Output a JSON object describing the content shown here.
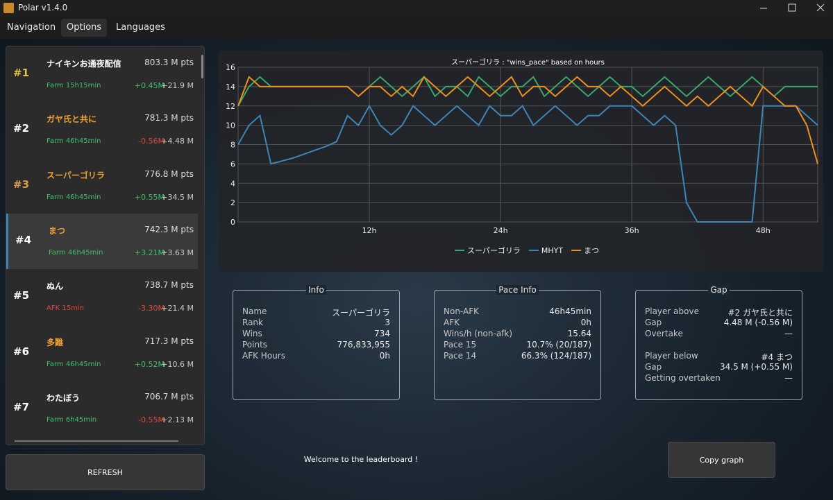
{
  "window_title": "Polar v1.4.0",
  "menu": [
    "Navigation",
    "Options",
    "Languages"
  ],
  "leaderboard": [
    {
      "rank": "#1",
      "rank_color": "#e3c04e",
      "name": "ナイキンお通夜配信",
      "name_color": "#ffffff",
      "points": "803.3 M pts",
      "status": "Farm 15h15min",
      "status_color": "#3fbf6a",
      "delta": "+0.45M",
      "delta_color": "#3fbf6a",
      "gap": "+21.9 M"
    },
    {
      "rank": "#2",
      "rank_color": "#ffffff",
      "name": "ガヤ氏と共に",
      "name_color": "#f0a032",
      "points": "781.3 M pts",
      "status": "Farm 46h45min",
      "status_color": "#3fbf6a",
      "delta": "-0.56M",
      "delta_color": "#e0473c",
      "gap": "+4.48 M"
    },
    {
      "rank": "#3",
      "rank_color": "#d99a4c",
      "name": "スーパーゴリラ",
      "name_color": "#f0a032",
      "points": "776.8 M pts",
      "status": "Farm 46h45min",
      "status_color": "#3fbf6a",
      "delta": "+0.55M",
      "delta_color": "#3fbf6a",
      "gap": "+34.5 M"
    },
    {
      "rank": "#4",
      "rank_color": "#ffffff",
      "name": "まつ",
      "name_color": "#f0a032",
      "points": "742.3 M pts",
      "status": "Farm 46h45min",
      "status_color": "#3fbf6a",
      "delta": "+3.21M",
      "delta_color": "#3fbf6a",
      "gap": "+3.63 M"
    },
    {
      "rank": "#5",
      "rank_color": "#ffffff",
      "name": "ぬん",
      "name_color": "#ffffff",
      "points": "738.7 M pts",
      "status": "AFK 15min",
      "status_color": "#e0473c",
      "delta": "-3.30M",
      "delta_color": "#e0473c",
      "gap": "+21.4 M"
    },
    {
      "rank": "#6",
      "rank_color": "#ffffff",
      "name": "多難",
      "name_color": "#f0a032",
      "points": "717.3 M pts",
      "status": "Farm 46h45min",
      "status_color": "#3fbf6a",
      "delta": "+0.52M",
      "delta_color": "#3fbf6a",
      "gap": "+10.6 M"
    },
    {
      "rank": "#7",
      "rank_color": "#ffffff",
      "name": "わたぼう",
      "name_color": "#ffffff",
      "points": "706.7 M pts",
      "status": "Farm 6h45min",
      "status_color": "#3fbf6a",
      "delta": "-0.55M",
      "delta_color": "#e0473c",
      "gap": "+2.13 M"
    }
  ],
  "refresh_button": "REFRESH",
  "chart_data": {
    "type": "line",
    "title": "スーパーゴリラ : \"wins_pace\" based on hours",
    "x": [
      0,
      1,
      2,
      3,
      4,
      5,
      6,
      7,
      8,
      9,
      10,
      11,
      12,
      13,
      14,
      15,
      16,
      17,
      18,
      19,
      20,
      21,
      22,
      23,
      24,
      25,
      26,
      27,
      28,
      29,
      30,
      31,
      32,
      33,
      34,
      35,
      36,
      37,
      38,
      39,
      40,
      41,
      42,
      43,
      44,
      45,
      46,
      47,
      48,
      49,
      50,
      51,
      52,
      53
    ],
    "xlim": [
      0,
      53
    ],
    "xticks": [
      {
        "value": 12,
        "label": "12h"
      },
      {
        "value": 24,
        "label": "24h"
      },
      {
        "value": 36,
        "label": "36h"
      },
      {
        "value": 48,
        "label": "48h"
      }
    ],
    "ylim": [
      0,
      16
    ],
    "yticks": [
      0,
      2,
      4,
      6,
      8,
      10,
      12,
      14,
      16
    ],
    "grid": true,
    "legend": "bottom",
    "series": [
      {
        "name": "スーパーゴリラ",
        "color": "#3aa86b",
        "values": [
          12,
          14,
          15,
          14,
          14,
          14,
          14,
          14,
          14,
          14,
          14,
          13,
          14,
          15,
          14,
          13,
          14,
          15,
          13,
          14,
          14,
          13,
          15,
          14,
          13,
          14,
          14,
          15,
          13,
          14,
          15,
          14,
          13,
          14,
          15,
          14,
          14,
          13,
          14,
          15,
          14,
          13,
          14,
          15,
          14,
          13,
          14,
          15,
          14,
          13,
          14,
          14,
          14,
          14
        ]
      },
      {
        "name": "MHYT",
        "color": "#3f86b8",
        "values": [
          8,
          10,
          11,
          6,
          6.3,
          6.6,
          7,
          7.4,
          7.8,
          8.3,
          11,
          10,
          12,
          10,
          9,
          10,
          12,
          11,
          10,
          11,
          12,
          11,
          10,
          12,
          11,
          11,
          12,
          10,
          11,
          12,
          11,
          10,
          11,
          11,
          12,
          12,
          12,
          11,
          10,
          11,
          10,
          2,
          0,
          0,
          0,
          0,
          0,
          0,
          12,
          12,
          12,
          12,
          11,
          10
        ]
      },
      {
        "name": "まつ",
        "color": "#f0901e",
        "values": [
          12,
          15,
          14,
          14,
          14,
          14,
          14,
          14,
          14,
          14,
          14,
          13,
          14,
          14,
          13,
          14,
          13,
          15,
          14,
          13,
          14,
          15,
          14,
          13,
          14,
          15,
          13,
          14,
          14,
          13,
          14,
          15,
          14,
          14,
          13,
          14,
          13,
          12,
          13,
          14,
          13,
          12,
          13,
          12,
          13,
          14,
          13,
          12,
          14,
          13,
          12,
          12,
          10,
          6
        ]
      }
    ]
  },
  "info_panels": [
    {
      "title": "Info",
      "groups": [
        [
          [
            "Name",
            "スーパーゴリラ"
          ],
          [
            "Rank",
            "3"
          ],
          [
            "Wins",
            "734"
          ],
          [
            "Points",
            "776,833,955"
          ],
          [
            "AFK Hours",
            "0h"
          ]
        ]
      ]
    },
    {
      "title": "Pace Info",
      "groups": [
        [
          [
            "Non-AFK",
            "46h45min"
          ],
          [
            "AFK",
            "0h"
          ],
          [
            "Wins/h (non-afk)",
            "15.64"
          ],
          [
            "Pace 15",
            "10.7% (20/187)"
          ],
          [
            "Pace 14",
            "66.3% (124/187)"
          ]
        ]
      ]
    },
    {
      "title": "Gap",
      "groups": [
        [
          [
            "Player above",
            "#2 ガヤ氏と共に"
          ],
          [
            "Gap",
            "4.48 M (-0.56 M)"
          ],
          [
            "Overtake",
            "—"
          ]
        ],
        [
          [
            "Player below",
            "#4 まつ"
          ],
          [
            "Gap",
            "34.5 M (+0.55 M)"
          ],
          [
            "Getting overtaken",
            "—"
          ]
        ]
      ]
    }
  ],
  "welcome": "Welcome to the leaderboard !",
  "copy_button": "Copy graph"
}
